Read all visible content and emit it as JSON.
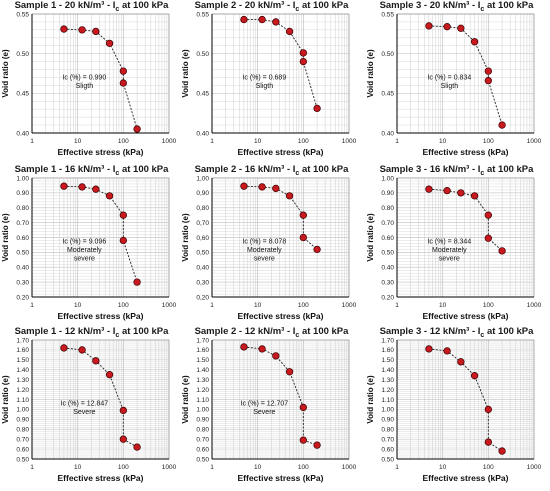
{
  "chart_data": [
    {
      "type": "scatter",
      "title": "Sample 1 - 20 kN/m³ - Ic at 100 kPa",
      "xlabel": "Effective stress (kPa)",
      "ylabel": "Void ratio (e)",
      "xscale": "log",
      "xlim": [
        1,
        1000
      ],
      "xticks": [
        "1",
        "10",
        "100",
        "1000"
      ],
      "ylim": [
        0.4,
        0.55
      ],
      "yticks": [
        "0.40",
        "0.45",
        "0.50",
        "0.55"
      ],
      "x": [
        5,
        12.5,
        25,
        50,
        100,
        100,
        200
      ],
      "y": [
        0.531,
        0.53,
        0.528,
        0.513,
        0.478,
        0.463,
        0.405
      ],
      "annotation": [
        "Ic (%) = 0.990",
        "Sligth"
      ]
    },
    {
      "type": "scatter",
      "title": "Sample 2 - 20 kN/m³ - Ic at 100 kPa",
      "xlabel": "Effective stress (kPa)",
      "ylabel": "Void ratio (e)",
      "xscale": "log",
      "xlim": [
        1,
        1000
      ],
      "xticks": [
        "1",
        "10",
        "100",
        "1000"
      ],
      "ylim": [
        0.4,
        0.55
      ],
      "yticks": [
        "0.40",
        "0.45",
        "0.50",
        "0.55"
      ],
      "x": [
        5,
        12.5,
        25,
        50,
        100,
        100,
        200
      ],
      "y": [
        0.543,
        0.543,
        0.54,
        0.528,
        0.501,
        0.49,
        0.431
      ],
      "annotation": [
        "Ic (%) = 0.689",
        "Sligth"
      ]
    },
    {
      "type": "scatter",
      "title": "Sample 3 - 20 kN/m³ - Ic at 100 kPa",
      "xlabel": "Effective stress (kPa)",
      "ylabel": "Void ratio (e)",
      "xscale": "log",
      "xlim": [
        1,
        1000
      ],
      "xticks": [
        "1",
        "10",
        "100",
        "1000"
      ],
      "ylim": [
        0.4,
        0.55
      ],
      "yticks": [
        "0.40",
        "0.45",
        "0.50",
        "0.55"
      ],
      "x": [
        5,
        12.5,
        25,
        50,
        100,
        100,
        200
      ],
      "y": [
        0.535,
        0.534,
        0.532,
        0.515,
        0.478,
        0.466,
        0.41
      ],
      "annotation": [
        "Ic (%) = 0.834",
        "Sligth"
      ]
    },
    {
      "type": "scatter",
      "title": "Sample 1 - 16 kN/m³ - Ic at 100 kPa",
      "xlabel": "Effective stress (kPa)",
      "ylabel": "Void ratio (e)",
      "xscale": "log",
      "xlim": [
        1,
        1000
      ],
      "xticks": [
        "1",
        "10",
        "100",
        "1000"
      ],
      "ylim": [
        0.2,
        1.0
      ],
      "yticks": [
        "0.20",
        "0.30",
        "0.40",
        "0.50",
        "0.60",
        "0.70",
        "0.80",
        "0.90",
        "1.00"
      ],
      "x": [
        5,
        12.5,
        25,
        50,
        100,
        100,
        200
      ],
      "y": [
        0.945,
        0.94,
        0.925,
        0.88,
        0.75,
        0.58,
        0.3
      ],
      "annotation": [
        "Ic (%) = 9.096",
        "Moderately",
        "severe"
      ]
    },
    {
      "type": "scatter",
      "title": "Sample 2 - 16 kN/m³ - Ic at 100 kPa",
      "xlabel": "Effective stress (kPa)",
      "ylabel": "Void ratio (e)",
      "xscale": "log",
      "xlim": [
        1,
        1000
      ],
      "xticks": [
        "1",
        "10",
        "100",
        "1000"
      ],
      "ylim": [
        0.2,
        1.0
      ],
      "yticks": [
        "0,20",
        "0,30",
        "0,40",
        "0,50",
        "0,60",
        "0,70",
        "0,80",
        "0,90",
        "1,00"
      ],
      "x": [
        5,
        12.5,
        25,
        50,
        100,
        100,
        200
      ],
      "y": [
        0.945,
        0.94,
        0.93,
        0.88,
        0.75,
        0.6,
        0.52
      ],
      "annotation": [
        "Ic (%) = 8.078",
        "Moderately",
        "severe"
      ]
    },
    {
      "type": "scatter",
      "title": "Sample 3 - 16 kN/m³ - Ic at 100 kPa",
      "xlabel": "Effective stress (kPa)",
      "ylabel": "Void ratio (e)",
      "xscale": "log",
      "xlim": [
        1,
        1000
      ],
      "xticks": [
        "1",
        "10",
        "100",
        "1000"
      ],
      "ylim": [
        0.2,
        1.0
      ],
      "yticks": [
        "0.20",
        "0.30",
        "0.40",
        "0.50",
        "0.60",
        "0.70",
        "0.80",
        "0.90",
        "1.00"
      ],
      "x": [
        5,
        12.5,
        25,
        50,
        100,
        100,
        200
      ],
      "y": [
        0.925,
        0.915,
        0.9,
        0.88,
        0.75,
        0.595,
        0.51
      ],
      "annotation": [
        "Ic (%) = 8.344",
        "Moderately",
        "severe"
      ]
    },
    {
      "type": "scatter",
      "title": "Sample 1 - 12 kN/m³ - Ic at 100 kPa",
      "xlabel": "Effective stress (kPa)",
      "ylabel": "Void ratio (e)",
      "xscale": "log",
      "xlim": [
        1,
        1000
      ],
      "xticks": [
        "1",
        "10",
        "100",
        "1000"
      ],
      "ylim": [
        0.5,
        1.7
      ],
      "yticks": [
        "0.50",
        "0.60",
        "0.70",
        "0.80",
        "0.90",
        "1.00",
        "1.10",
        "1.20",
        "1.30",
        "1.40",
        "1.50",
        "1.60",
        "1.70"
      ],
      "x": [
        5,
        12.5,
        25,
        50,
        100,
        100,
        200
      ],
      "y": [
        1.62,
        1.6,
        1.49,
        1.35,
        0.99,
        0.7,
        0.62
      ],
      "annotation": [
        "Ic (%) = 12.847",
        "Severe"
      ]
    },
    {
      "type": "scatter",
      "title": "Sample 2 - 12 kN/m³ - Ic at 100 kPa",
      "xlabel": "Effective stress (kPa)",
      "ylabel": "Void ratio (e)",
      "xscale": "log",
      "xlim": [
        1,
        1000
      ],
      "xticks": [
        "1",
        "10",
        "100",
        "1000"
      ],
      "ylim": [
        0.5,
        1.7
      ],
      "yticks": [
        "0.50",
        "0.60",
        "0.70",
        "0.80",
        "0.90",
        "1.00",
        "1.10",
        "1.20",
        "1.30",
        "1.40",
        "1.50",
        "1.60",
        "1.70"
      ],
      "x": [
        5,
        12.5,
        25,
        50,
        100,
        100,
        200
      ],
      "y": [
        1.63,
        1.61,
        1.54,
        1.38,
        1.02,
        0.69,
        0.64
      ],
      "annotation": [
        "Ic (%) = 12.707",
        "Severe"
      ]
    },
    {
      "type": "scatter",
      "title": "Sample 3 - 12 kN/m³ - Ic at 100 kPa",
      "xlabel": "Effective stress (kPa)",
      "ylabel": "Void ratio (e)",
      "xscale": "log",
      "xlim": [
        1,
        1000
      ],
      "xticks": [
        "1",
        "10",
        "100",
        "1000"
      ],
      "ylim": [
        0.5,
        1.7
      ],
      "yticks": [
        "0.50",
        "0.60",
        "0.70",
        "0.80",
        "0.90",
        "1.00",
        "1.10",
        "1.20",
        "1.30",
        "1.40",
        "1.50",
        "1.60",
        "1.70"
      ],
      "x": [
        5,
        12.5,
        25,
        50,
        100,
        100,
        200
      ],
      "y": [
        1.61,
        1.59,
        1.48,
        1.34,
        1.0,
        0.67,
        0.58
      ],
      "annotation": []
    }
  ],
  "colors": {
    "marker_fill": "#c8191e",
    "marker_stroke": "#3a0000",
    "line": "#222222",
    "grid": "#c9c9c9",
    "axis": "#000000"
  }
}
